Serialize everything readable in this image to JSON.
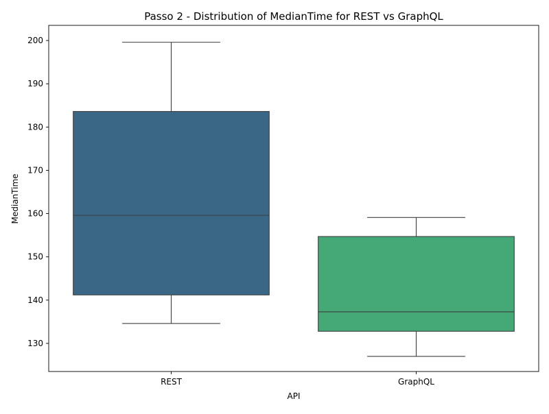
{
  "chart_data": {
    "type": "box",
    "title": "Passo 2 - Distribution of MedianTime for REST vs GraphQL",
    "xlabel": "API",
    "ylabel": "MedianTime",
    "ylim": [
      123.5,
      203.5
    ],
    "yticks": [
      130,
      140,
      150,
      160,
      170,
      180,
      190,
      200
    ],
    "grid": false,
    "categories": [
      "REST",
      "GraphQL"
    ],
    "boxes": [
      {
        "category": "REST",
        "whisker_low": 134.6,
        "q1": 141.2,
        "median": 159.6,
        "q3": 183.6,
        "whisker_high": 199.6,
        "color": "#3b6786"
      },
      {
        "category": "GraphQL",
        "whisker_low": 127.0,
        "q1": 132.8,
        "median": 137.3,
        "q3": 154.7,
        "whisker_high": 159.1,
        "color": "#44a877"
      }
    ]
  }
}
